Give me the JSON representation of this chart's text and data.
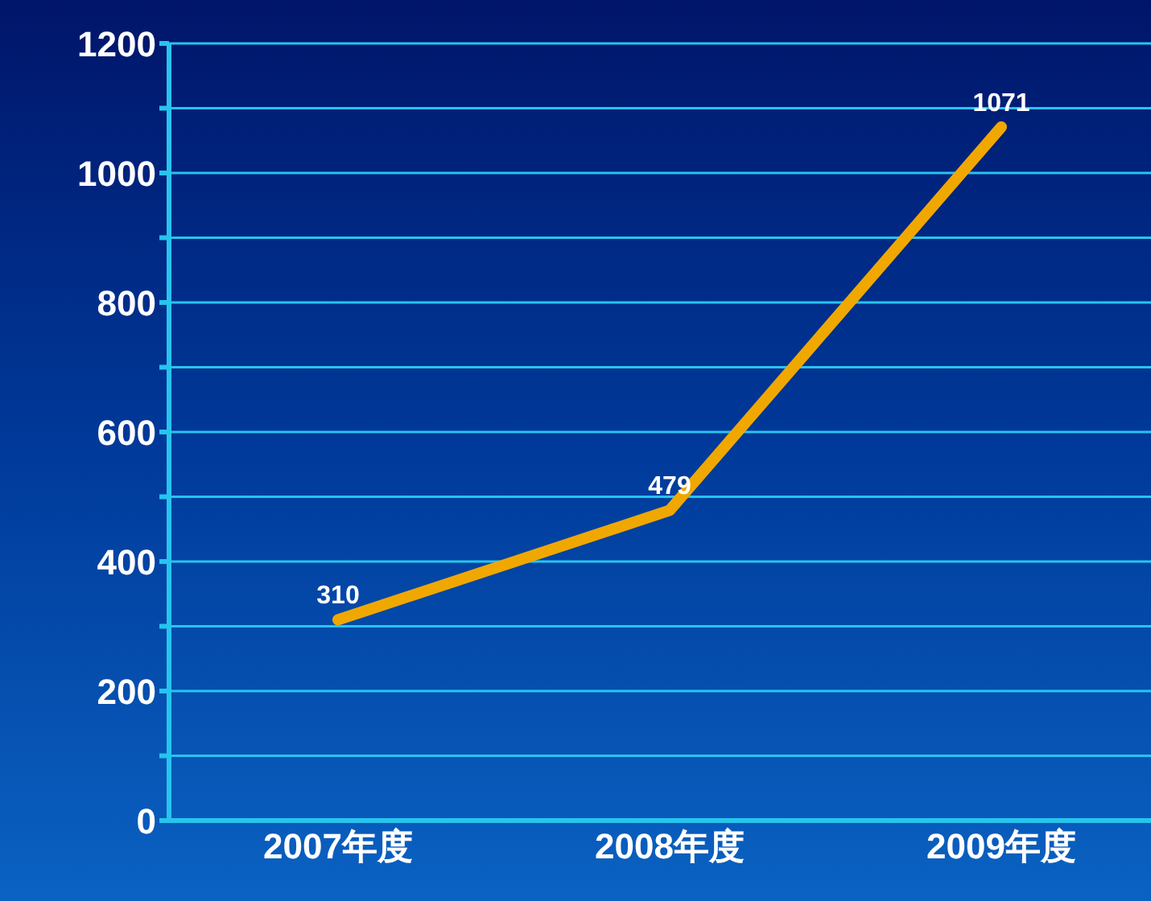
{
  "chart_data": {
    "type": "line",
    "categories": [
      "2007年度",
      "2008年度",
      "2009年度"
    ],
    "series": [
      {
        "color": "#f0a800",
        "values": [
          310,
          479,
          1071
        ]
      }
    ],
    "ylim": [
      0,
      1200
    ],
    "yticks": [
      0,
      {
        "value": 100,
        "label": null
      },
      200,
      {
        "value": 300,
        "label": null
      },
      400,
      {
        "value": 500,
        "label": null
      },
      600,
      {
        "value": 700,
        "label": null
      },
      800,
      {
        "value": 900,
        "label": null
      },
      1000,
      {
        "value": 1100,
        "label": null
      },
      1200
    ],
    "grid": "y",
    "data_labels": true,
    "marker": "none",
    "line_style": "solid"
  }
}
